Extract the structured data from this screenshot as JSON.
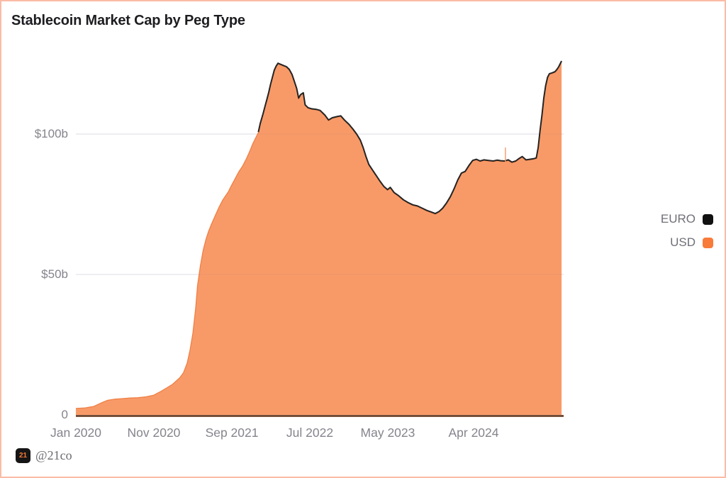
{
  "frame": {
    "border_color": "#fbbca6",
    "background": "#ffffff"
  },
  "header": {
    "title": "Stablecoin Market Cap by Peg Type"
  },
  "footer": {
    "logo_text": "21",
    "handle": "@21co"
  },
  "legend": {
    "items": [
      {
        "label": "EURO",
        "color": "#111111"
      },
      {
        "label": "USD",
        "color": "#f87b3a"
      }
    ]
  },
  "chart_data": {
    "type": "area",
    "stacked": true,
    "title": "Stablecoin Market Cap by Peg Type",
    "unit": "USD billions",
    "grid": "horizontal",
    "legend_position": "right",
    "x_axis": {
      "ticks": [
        {
          "label": "Jan 2020",
          "year": 2020.0
        },
        {
          "label": "Nov 2020",
          "year": 2020.833
        },
        {
          "label": "Sep 2021",
          "year": 2021.667
        },
        {
          "label": "Jul 2022",
          "year": 2022.5
        },
        {
          "label": "May 2023",
          "year": 2023.333
        },
        {
          "label": "Apr 2024",
          "year": 2024.25
        }
      ],
      "range_years": [
        2020.0,
        2025.19
      ]
    },
    "y_axis": {
      "ticks": [
        {
          "label": "$100b",
          "value": 100
        },
        {
          "label": "$50b",
          "value": 50
        },
        {
          "label": "0",
          "value": 0
        }
      ],
      "range": [
        0,
        132
      ]
    },
    "series": [
      {
        "name": "EURO",
        "color": "#242424"
      },
      {
        "name": "USD",
        "color": "#f89a68",
        "edge_color": "#ef8046"
      }
    ],
    "samples_format": [
      "year_decimal",
      "usd_billions",
      "euro_billions"
    ],
    "samples": [
      [
        2020.0,
        2.3,
        0
      ],
      [
        2020.1,
        2.5,
        0
      ],
      [
        2020.19,
        3.0,
        0
      ],
      [
        2020.28,
        4.4,
        0
      ],
      [
        2020.34,
        5.2,
        0
      ],
      [
        2020.42,
        5.6,
        0
      ],
      [
        2020.5,
        5.8,
        0
      ],
      [
        2020.58,
        6.0,
        0
      ],
      [
        2020.66,
        6.1,
        0
      ],
      [
        2020.74,
        6.4,
        0
      ],
      [
        2020.83,
        7.0,
        0
      ],
      [
        2020.9,
        8.2,
        0
      ],
      [
        2020.97,
        9.6,
        0
      ],
      [
        2021.03,
        10.8,
        0
      ],
      [
        2021.07,
        12.0,
        0
      ],
      [
        2021.11,
        13.2,
        0
      ],
      [
        2021.15,
        15.0,
        0
      ],
      [
        2021.19,
        18.5,
        0
      ],
      [
        2021.22,
        23.0,
        0
      ],
      [
        2021.25,
        29.0,
        0
      ],
      [
        2021.28,
        38.0,
        0
      ],
      [
        2021.3,
        46.0,
        0
      ],
      [
        2021.33,
        53.0,
        0
      ],
      [
        2021.36,
        58.5,
        0
      ],
      [
        2021.39,
        62.5,
        0
      ],
      [
        2021.42,
        65.5,
        0
      ],
      [
        2021.45,
        68.0,
        0
      ],
      [
        2021.49,
        71.0,
        0
      ],
      [
        2021.53,
        74.0,
        0
      ],
      [
        2021.57,
        76.5,
        0
      ],
      [
        2021.6,
        78.0,
        0
      ],
      [
        2021.63,
        79.5,
        0
      ],
      [
        2021.66,
        81.5,
        0
      ],
      [
        2021.7,
        84.0,
        0
      ],
      [
        2021.74,
        86.5,
        0
      ],
      [
        2021.78,
        88.5,
        0
      ],
      [
        2021.82,
        91.0,
        0
      ],
      [
        2021.86,
        94.0,
        0
      ],
      [
        2021.89,
        96.5,
        0
      ],
      [
        2021.92,
        98.5,
        0
      ],
      [
        2021.95,
        100.5,
        0.4
      ],
      [
        2021.97,
        103.5,
        0.4
      ],
      [
        2022.0,
        107.0,
        0.4
      ],
      [
        2022.02,
        109.5,
        0.4
      ],
      [
        2022.04,
        112.0,
        0.4
      ],
      [
        2022.06,
        114.5,
        0.4
      ],
      [
        2022.08,
        117.5,
        0.4
      ],
      [
        2022.1,
        120.0,
        0.4
      ],
      [
        2022.12,
        122.5,
        0.4
      ],
      [
        2022.14,
        124.0,
        0.4
      ],
      [
        2022.16,
        125.0,
        0.4
      ],
      [
        2022.19,
        124.6,
        0.4
      ],
      [
        2022.22,
        124.2,
        0.4
      ],
      [
        2022.25,
        123.8,
        0.4
      ],
      [
        2022.28,
        122.8,
        0.4
      ],
      [
        2022.31,
        121.0,
        0.4
      ],
      [
        2022.33,
        119.0,
        0.4
      ],
      [
        2022.36,
        116.0,
        0.4
      ],
      [
        2022.38,
        112.6,
        0.4
      ],
      [
        2022.4,
        113.8,
        0.4
      ],
      [
        2022.43,
        114.5,
        0.4
      ],
      [
        2022.45,
        110.2,
        0.4
      ],
      [
        2022.48,
        109.2,
        0.4
      ],
      [
        2022.52,
        108.8,
        0.4
      ],
      [
        2022.57,
        108.6,
        0.4
      ],
      [
        2022.61,
        108.2,
        0.4
      ],
      [
        2022.66,
        106.6,
        0.4
      ],
      [
        2022.7,
        104.8,
        0.4
      ],
      [
        2022.74,
        105.6,
        0.4
      ],
      [
        2022.79,
        106.0,
        0.4
      ],
      [
        2022.83,
        106.3,
        0.4
      ],
      [
        2022.87,
        104.8,
        0.4
      ],
      [
        2022.92,
        103.2,
        0.4
      ],
      [
        2022.96,
        101.6,
        0.4
      ],
      [
        2023.0,
        99.8,
        0.4
      ],
      [
        2023.04,
        97.6,
        0.4
      ],
      [
        2023.07,
        95.0,
        0.4
      ],
      [
        2023.1,
        91.8,
        0.4
      ],
      [
        2023.13,
        89.0,
        0.4
      ],
      [
        2023.17,
        87.0,
        0.4
      ],
      [
        2023.21,
        85.0,
        0.4
      ],
      [
        2023.25,
        83.0,
        0.4
      ],
      [
        2023.29,
        81.2,
        0.4
      ],
      [
        2023.33,
        80.0,
        0.4
      ],
      [
        2023.36,
        80.8,
        0.4
      ],
      [
        2023.4,
        79.0,
        0.4
      ],
      [
        2023.45,
        77.8,
        0.4
      ],
      [
        2023.5,
        76.4,
        0.4
      ],
      [
        2023.55,
        75.4,
        0.4
      ],
      [
        2023.6,
        74.6,
        0.4
      ],
      [
        2023.65,
        74.2,
        0.4
      ],
      [
        2023.7,
        73.4,
        0.4
      ],
      [
        2023.75,
        72.6,
        0.4
      ],
      [
        2023.8,
        72.0,
        0.4
      ],
      [
        2023.84,
        71.5,
        0.4
      ],
      [
        2023.88,
        72.2,
        0.4
      ],
      [
        2023.92,
        73.4,
        0.4
      ],
      [
        2023.96,
        75.2,
        0.4
      ],
      [
        2024.0,
        77.4,
        0.4
      ],
      [
        2024.04,
        80.2,
        0.4
      ],
      [
        2024.08,
        83.4,
        0.4
      ],
      [
        2024.12,
        85.9,
        0.4
      ],
      [
        2024.16,
        86.5,
        0.4
      ],
      [
        2024.2,
        88.6,
        0.4
      ],
      [
        2024.24,
        90.4,
        0.4
      ],
      [
        2024.28,
        90.8,
        0.4
      ],
      [
        2024.32,
        90.2,
        0.4
      ],
      [
        2024.36,
        90.6,
        0.4
      ],
      [
        2024.41,
        90.4,
        0.4
      ],
      [
        2024.46,
        90.2,
        0.4
      ],
      [
        2024.5,
        90.5,
        0.4
      ],
      [
        2024.54,
        90.3,
        0.4
      ],
      [
        2024.58,
        90.2,
        0.4
      ],
      [
        2024.62,
        90.6,
        0.4
      ],
      [
        2024.66,
        89.8,
        0.4
      ],
      [
        2024.7,
        90.2,
        0.4
      ],
      [
        2024.74,
        91.2,
        0.4
      ],
      [
        2024.77,
        91.8,
        0.4
      ],
      [
        2024.81,
        90.6,
        0.4
      ],
      [
        2024.85,
        90.8,
        0.4
      ],
      [
        2024.89,
        91.0,
        0.4
      ],
      [
        2024.92,
        91.3,
        0.4
      ],
      [
        2024.94,
        95.0,
        0.4
      ],
      [
        2024.96,
        101.0,
        0.4
      ],
      [
        2024.98,
        106.5,
        0.4
      ],
      [
        2025.0,
        112.6,
        0.4
      ],
      [
        2025.02,
        117.0,
        0.4
      ],
      [
        2025.04,
        120.0,
        0.4
      ],
      [
        2025.06,
        121.3,
        0.4
      ],
      [
        2025.09,
        121.6,
        0.4
      ],
      [
        2025.12,
        122.0,
        0.4
      ],
      [
        2025.14,
        122.8,
        0.4
      ],
      [
        2025.16,
        123.8,
        0.4
      ],
      [
        2025.19,
        125.8,
        0.4
      ]
    ],
    "spike_annotation": {
      "year": 2024.59,
      "from": 90.2,
      "to": 95.2
    },
    "colors": {
      "grid": "#e8e8ef",
      "baseline": "#5c3119",
      "tick_text": "#84848d"
    }
  }
}
